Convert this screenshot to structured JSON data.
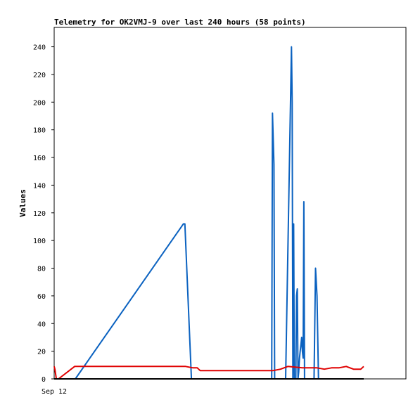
{
  "chart_data": {
    "type": "line",
    "title": "Telemetry for OK2VMJ-9 over last 240 hours (58 points)",
    "ylabel": "Values",
    "xlabel": "",
    "x_tick_labels": [
      "Sep 12"
    ],
    "ylim": [
      0,
      254
    ],
    "yticks": [
      0,
      20,
      40,
      60,
      80,
      100,
      120,
      140,
      160,
      180,
      200,
      220,
      240
    ],
    "xlim": [
      0,
      240
    ],
    "grid": false,
    "legend": "none",
    "series": [
      {
        "color": "#0b62c0",
        "x": [
          14.5,
          88.5,
          89.5,
          94,
          149,
          149.5,
          150.5,
          151,
          152,
          153,
          154,
          155,
          156,
          157,
          158,
          158.5,
          162.5,
          163,
          163.5,
          164,
          164.5,
          165.5,
          166,
          166.5,
          167,
          167.5,
          168,
          168.5,
          169,
          169.5,
          170,
          170.5,
          171,
          171.5,
          172,
          173,
          174,
          175,
          176,
          177,
          178,
          179,
          180,
          181,
          182,
          183,
          183.5,
          184,
          184.5,
          185,
          186,
          187,
          188,
          189,
          190
        ],
        "values": [
          0,
          112,
          112,
          0,
          0,
          192,
          155,
          0,
          0,
          0,
          0,
          0,
          0,
          0,
          0,
          0,
          240,
          200,
          0,
          112,
          0,
          0,
          60,
          65,
          0,
          5,
          15,
          20,
          25,
          30,
          20,
          15,
          128,
          0,
          0,
          0,
          0,
          0,
          0,
          0,
          0,
          80,
          60,
          0,
          0,
          0,
          0,
          0,
          0,
          0,
          0,
          0,
          0,
          0,
          0
        ]
      },
      {
        "color": "#e00000",
        "x": [
          0,
          0.5,
          1.5,
          3,
          14,
          20,
          30,
          50,
          80,
          90,
          95,
          98,
          100,
          110,
          150,
          155,
          160,
          170,
          175,
          180,
          185,
          190,
          195,
          200,
          205,
          210,
          212
        ],
        "values": [
          9,
          7,
          0,
          0,
          9,
          9,
          9,
          9,
          9,
          9,
          8,
          8,
          6,
          6,
          6,
          7,
          9,
          8,
          8,
          8,
          7,
          8,
          8,
          9,
          7,
          7,
          9
        ]
      },
      {
        "color": "#000000",
        "x": [
          0,
          212
        ],
        "values": [
          0,
          0
        ]
      }
    ]
  }
}
